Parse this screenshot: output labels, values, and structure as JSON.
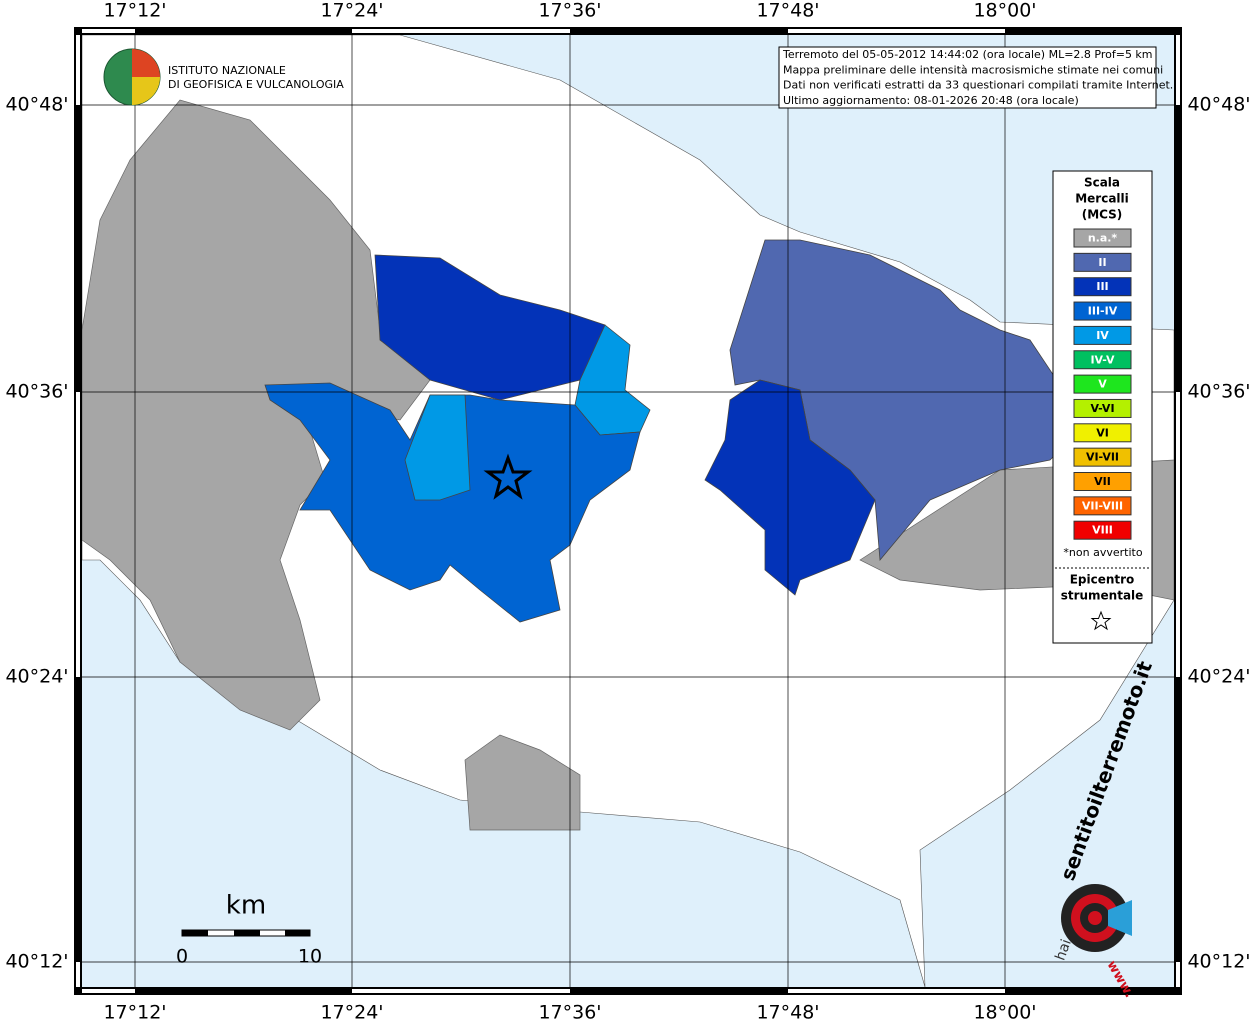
{
  "map": {
    "lon_ticks": [
      "17°12'",
      "17°24'",
      "17°36'",
      "17°48'",
      "18°00'"
    ],
    "lat_ticks": [
      "40°48'",
      "40°36'",
      "40°24'",
      "40°12'"
    ],
    "info_lines": [
      "Terremoto del 05-05-2012 14:44:02 (ora locale) ML=2.8 Prof=5 km",
      "Mappa preliminare delle intensità macrosismiche stimate nei comuni",
      "Dati non verificati estratti da 33 questionari compilati tramite Internet.",
      "Ultimo aggiornamento: 08-01-2026 20:48 (ora locale)"
    ],
    "logo_lines": [
      "ISTITUTO NAZIONALE",
      "DI GEOFISICA E VULCANOLOGIA"
    ],
    "legend": {
      "title": [
        "Scala",
        "Mercalli",
        "(MCS)"
      ],
      "items": [
        {
          "label": "n.a.*",
          "color": "#a6a6a6"
        },
        {
          "label": "II",
          "color": "#5068b0"
        },
        {
          "label": "III",
          "color": "#0333b8"
        },
        {
          "label": "III-IV",
          "color": "#0064d2"
        },
        {
          "label": "IV",
          "color": "#0099e6"
        },
        {
          "label": "IV-V",
          "color": "#00c060"
        },
        {
          "label": "V",
          "color": "#1ee61e"
        },
        {
          "label": "V-VI",
          "color": "#b4f000"
        },
        {
          "label": "VI",
          "color": "#f0f000"
        },
        {
          "label": "VI-VII",
          "color": "#f0c000"
        },
        {
          "label": "VII",
          "color": "#ffa000"
        },
        {
          "label": "VII-VIII",
          "color": "#ff6400"
        },
        {
          "label": "VIII",
          "color": "#f00000"
        }
      ],
      "note": "*non avvertito",
      "epicenter": [
        "Epicentro",
        "strumentale"
      ]
    },
    "scale_bar": {
      "unit": "km",
      "labels": [
        "0",
        "10"
      ]
    },
    "site_logo": {
      "text": "sentitoilterremoto.it",
      "prefix": "hai",
      "www": "www."
    }
  }
}
